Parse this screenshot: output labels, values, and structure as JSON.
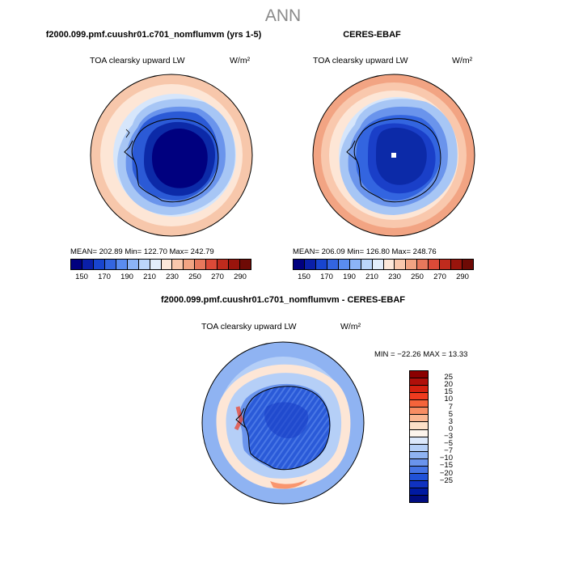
{
  "page_title": "ANN",
  "panels": [
    {
      "title": "f2000.099.pmf.cuushr01.c701_nomflumvm (yrs 1-5)",
      "variable": "TOA clearsky upward LW",
      "units": "W/m²",
      "stats": "MEAN= 202.89   Min= 122.70   Max= 242.79"
    },
    {
      "title": "CERES-EBAF",
      "variable": "TOA clearsky upward LW",
      "units": "W/m²",
      "stats": "MEAN= 206.09   Min= 126.80   Max= 248.76"
    }
  ],
  "abs_colorbar": {
    "colors": [
      "#00007f",
      "#0a1fa8",
      "#1845cf",
      "#3365e0",
      "#5a8cf0",
      "#8bb3f7",
      "#bcd6fb",
      "#e3eefc",
      "#fde8da",
      "#f9c8ad",
      "#f2a483",
      "#e8785c",
      "#dc4a38",
      "#c02b1d",
      "#99140c",
      "#6e0a05"
    ],
    "tick_labels": [
      "150",
      "170",
      "190",
      "210",
      "230",
      "250",
      "270",
      "290"
    ]
  },
  "diff_panel": {
    "title": "f2000.099.pmf.cuushr01.c701_nomflumvm - CERES-EBAF",
    "variable": "TOA clearsky upward LW",
    "units": "W/m²",
    "minmax": "MIN = −22.26  MAX =  13.33"
  },
  "diff_colorbar": {
    "colors": [
      "#8b0000",
      "#b00f0a",
      "#d4200f",
      "#ef3b1f",
      "#f5643b",
      "#f88d63",
      "#fbb691",
      "#fde0c8",
      "#fdf4ec",
      "#dce8fb",
      "#b5cff7",
      "#8fb3f2",
      "#6a94ec",
      "#4574e5",
      "#2052d8",
      "#1032c0",
      "#001aa2",
      "#000c80"
    ],
    "tick_labels": [
      "25",
      "20",
      "15",
      "10",
      "7",
      "5",
      "3",
      "0",
      "−3",
      "−5",
      "−7",
      "−10",
      "−15",
      "−20",
      "−25"
    ]
  }
}
